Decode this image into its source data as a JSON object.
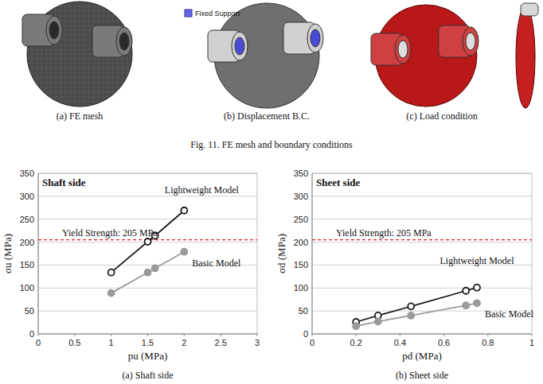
{
  "figure": {
    "top_captions": [
      "(a) FE mesh",
      "(b) Displacement B.C.",
      "(c) Load condition"
    ],
    "legend_label": "Fixed Support",
    "caption": "Fig. 11. FE mesh and boundary conditions"
  },
  "chart_data": [
    {
      "type": "line",
      "title": "Shaft side",
      "caption": "(a) Shaft side",
      "x_label": "pu (MPa)",
      "y_label": "σu (MPa)",
      "x": [
        1,
        1.5,
        1.6,
        2
      ],
      "series": [
        {
          "name": "Lightweight Model",
          "color": "#1a1a1a",
          "marker": "circle_open",
          "values": [
            134,
            201,
            214,
            269
          ]
        },
        {
          "name": "Basic Model",
          "color": "#9a9a9a",
          "marker": "circle",
          "values": [
            89,
            134,
            143,
            179
          ]
        }
      ],
      "xlim": [
        0,
        3
      ],
      "xticks": [
        0,
        0.5,
        1,
        1.5,
        2,
        2.5,
        3
      ],
      "ylim": [
        0,
        350
      ],
      "yticks": [
        0,
        50,
        100,
        150,
        200,
        250,
        300,
        350
      ],
      "grid": true,
      "annotations": [
        {
          "text": "Yield Strength: 205 MPa",
          "y": 205,
          "color": "#e02020",
          "line_style": "dashed"
        }
      ]
    },
    {
      "type": "line",
      "title": "Sheet side",
      "caption": "(b) Sheet side",
      "x_label": "pd (MPa)",
      "y_label": "σd (MPa)",
      "x": [
        0.2,
        0.3,
        0.45,
        0.7,
        0.75
      ],
      "series": [
        {
          "name": "Lightweight Model",
          "color": "#1a1a1a",
          "marker": "circle_open",
          "values": [
            26,
            40,
            60,
            94,
            101
          ]
        },
        {
          "name": "Basic Model",
          "color": "#9a9a9a",
          "marker": "circle",
          "values": [
            17,
            27,
            40,
            62,
            67
          ]
        }
      ],
      "xlim": [
        0,
        1
      ],
      "xticks": [
        0,
        0.2,
        0.4,
        0.6,
        0.8,
        1
      ],
      "ylim": [
        0,
        350
      ],
      "yticks": [
        0,
        50,
        100,
        150,
        200,
        250,
        300,
        350
      ],
      "grid": true,
      "annotations": [
        {
          "text": "Yield Strength: 205 MPa",
          "y": 205,
          "color": "#e02020",
          "line_style": "dashed"
        }
      ]
    }
  ]
}
